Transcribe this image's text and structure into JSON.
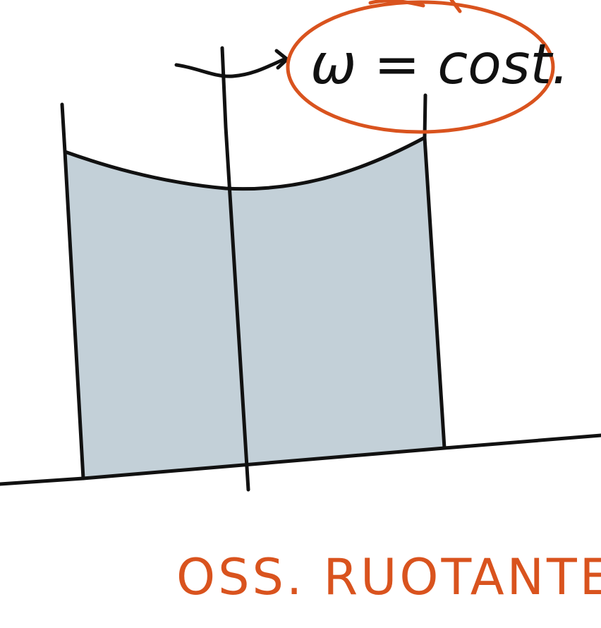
{
  "colors": {
    "ink": "#111111",
    "accent": "#d9531e",
    "liquid_fill": "#c3d0d8",
    "background": "#ffffff"
  },
  "annotation": {
    "formula": "ω = cost."
  },
  "caption": {
    "text": "OSS. RUOTANTE"
  }
}
